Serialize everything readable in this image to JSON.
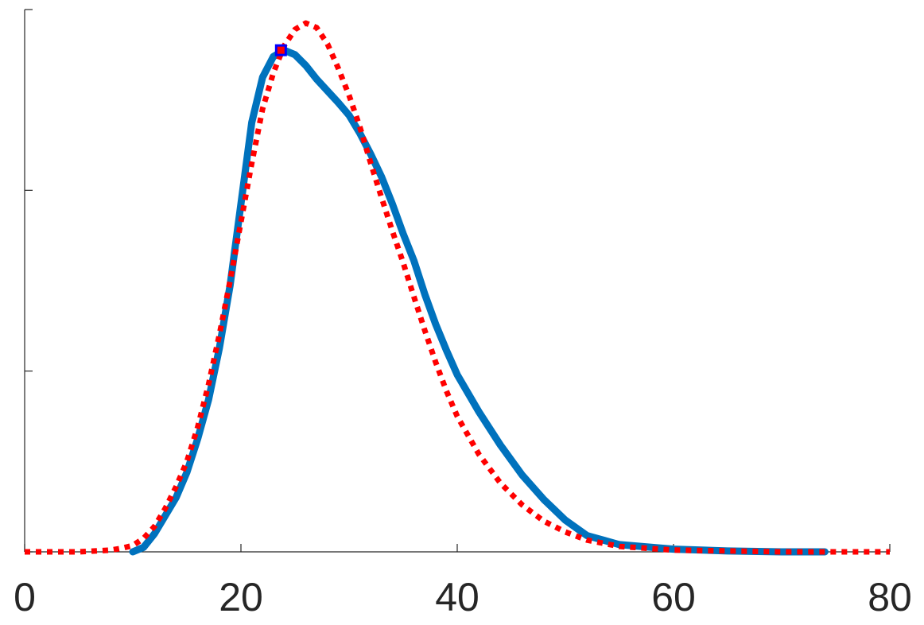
{
  "chart_data": {
    "type": "line",
    "title": "",
    "xlabel": "",
    "ylabel": "",
    "xlim": [
      0,
      80
    ],
    "ylim": [
      0,
      0.06
    ],
    "xticks": [
      0,
      20,
      40,
      60,
      80
    ],
    "xtick_labels": [
      "0",
      "20",
      "40",
      "60",
      "80"
    ],
    "yticks": [
      0,
      0.02,
      0.04,
      0.06
    ],
    "ytick_labels": [
      "",
      "",
      "",
      ""
    ],
    "grid": false,
    "colors": {
      "empirical": "#0072BD",
      "fit": "#FF0000",
      "peak_marker_edge": "#0000FF",
      "peak_marker_fill": "#FF0000",
      "axis": "#262626"
    },
    "series": [
      {
        "style": "solid",
        "color": "#0072BD",
        "x": [
          10,
          11,
          12,
          13,
          14,
          15,
          16,
          17,
          18,
          19,
          20,
          21,
          22,
          23,
          24,
          25,
          26,
          27,
          28,
          29,
          30,
          31,
          32,
          33,
          34,
          35,
          36,
          37,
          38,
          39,
          40,
          42,
          44,
          46,
          48,
          50,
          52,
          55,
          60,
          65,
          70,
          74
        ],
        "y": [
          0.0,
          0.0005,
          0.002,
          0.004,
          0.006,
          0.0088,
          0.0125,
          0.0168,
          0.0225,
          0.0295,
          0.0385,
          0.0475,
          0.0525,
          0.0548,
          0.0555,
          0.055,
          0.0538,
          0.0523,
          0.051,
          0.0497,
          0.0483,
          0.0463,
          0.044,
          0.0415,
          0.0385,
          0.0352,
          0.0322,
          0.0285,
          0.0252,
          0.0223,
          0.0196,
          0.0155,
          0.0118,
          0.0085,
          0.0058,
          0.0035,
          0.0018,
          0.0008,
          0.0003,
          0.0001,
          0.0,
          0.0
        ]
      },
      {
        "style": "dotted",
        "color": "#FF0000",
        "x": [
          0,
          5,
          8,
          9,
          10,
          11,
          12,
          13,
          14,
          15,
          16,
          17,
          18,
          19,
          20,
          21,
          22,
          23,
          24,
          25,
          26,
          27,
          28,
          29,
          30,
          31,
          32,
          33,
          34,
          35,
          36,
          37,
          38,
          39,
          40,
          42,
          44,
          46,
          48,
          50,
          52,
          55,
          60,
          65,
          70,
          80
        ],
        "y": [
          0.0,
          0.0,
          0.0002,
          0.0004,
          0.0007,
          0.0015,
          0.0028,
          0.0048,
          0.0072,
          0.01,
          0.0138,
          0.0185,
          0.024,
          0.03,
          0.0365,
          0.043,
          0.049,
          0.053,
          0.056,
          0.0578,
          0.0585,
          0.058,
          0.0562,
          0.0535,
          0.0505,
          0.047,
          0.043,
          0.0392,
          0.0355,
          0.032,
          0.0282,
          0.0245,
          0.021,
          0.0178,
          0.015,
          0.0108,
          0.0076,
          0.0052,
          0.0034,
          0.0022,
          0.0013,
          0.0006,
          0.0002,
          0.0001,
          0.0,
          0.0
        ]
      }
    ],
    "markers": [
      {
        "shape": "square",
        "x": 23.7,
        "y": 0.0555
      }
    ]
  }
}
